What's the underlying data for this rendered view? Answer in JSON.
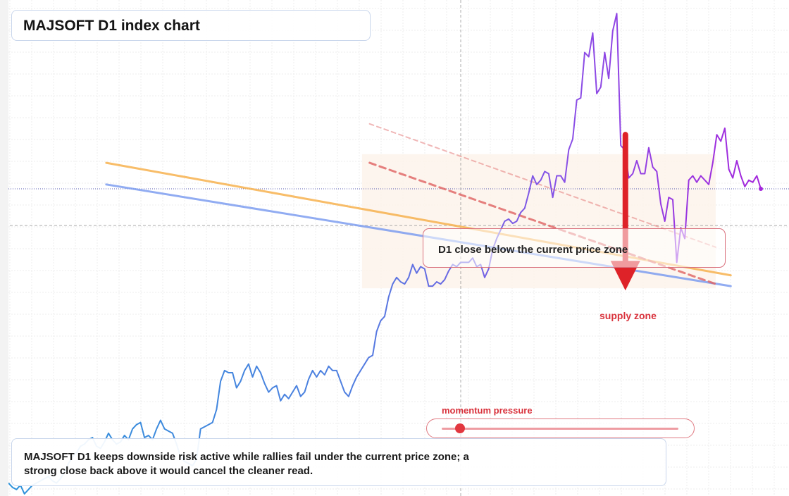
{
  "title": "MAJSOFT D1 index chart",
  "zone_label": "D1 close below the current price zone",
  "momentum_label": "momentum pressure",
  "momentum_level": 0.05,
  "supply_label": "supply zone",
  "note": "MAJSOFT D1 keeps downside risk active while rallies fail under the current price zone; a strong close back above it would cancel the cleaner read.",
  "colors": {
    "price_start": "#2e93db",
    "price_end": "#a326dc",
    "orange_line": "#f7b24f",
    "blue_line": "#7e9ef0",
    "dashed_channel": "#e06262",
    "arrow": "#de2228",
    "zone_fill": "#fdf3ea"
  },
  "chart_data": {
    "type": "line",
    "series": [
      {
        "values": [
          8.4,
          8.2,
          8.1,
          8.3,
          7.9,
          8.1,
          8.3,
          8.4,
          8.5,
          8.6,
          8.7,
          8.5,
          8.4,
          8.6,
          8.9,
          9.3,
          9.6,
          9.8,
          10.1,
          10.2,
          10.4,
          10.5,
          10.1,
          10.0,
          10.3,
          10.7,
          10.4,
          10.2,
          10.3,
          10.6,
          10.4,
          10.9,
          11.1,
          11.2,
          10.5,
          10.6,
          10.4,
          10.9,
          11.3,
          10.9,
          10.8,
          10.7,
          10.2,
          9.6,
          9.4,
          9.3,
          9.2,
          9.5,
          10.9,
          11.0,
          11.1,
          11.2,
          11.8,
          13.1,
          13.6,
          13.5,
          13.5,
          12.8,
          13.1,
          13.6,
          13.9,
          13.3,
          13.8,
          13.5,
          13.0,
          12.6,
          12.8,
          12.9,
          12.2,
          12.5,
          12.3,
          12.6,
          12.9,
          12.4,
          12.6,
          13.2,
          13.6,
          13.3,
          13.6,
          13.4,
          13.8,
          13.6,
          13.6,
          13.1,
          12.6,
          12.4,
          12.9,
          13.3,
          13.6,
          13.9,
          14.2,
          14.3,
          15.4,
          15.9,
          16.1,
          17.0,
          17.6,
          17.9,
          17.7,
          17.6,
          17.9,
          18.5,
          18.1,
          18.4,
          18.3,
          17.5,
          17.5,
          17.7,
          17.6,
          17.8,
          18.2,
          18.5,
          18.4,
          18.6,
          18.6,
          18.6,
          18.8,
          18.4,
          18.5,
          17.9,
          18.3,
          19.2,
          19.7,
          20.1,
          20.5,
          20.6,
          20.4,
          20.5,
          20.9,
          21.1,
          21.8,
          22.6,
          22.2,
          22.4,
          22.8,
          22.7,
          21.6,
          22.6,
          22.6,
          22.3,
          23.8,
          24.3,
          26.1,
          26.2,
          28.3,
          28.1,
          29.2,
          26.4,
          26.7,
          28.3,
          27.1,
          29.3,
          30.1,
          24.0,
          23.8,
          22.5,
          22.7,
          23.3,
          22.7,
          22.7,
          23.9,
          23.0,
          22.8,
          21.3,
          20.5,
          21.6,
          21.5,
          18.6,
          20.2,
          19.7,
          22.4,
          22.6,
          22.3,
          22.6,
          22.4,
          22.2,
          23.2,
          24.5,
          24.2,
          24.8,
          22.9,
          22.5,
          23.3,
          22.6,
          22.1,
          22.4,
          22.3,
          22.6,
          22.0
        ]
      }
    ],
    "xlim": [
      0,
      1
    ],
    "ylim": [
      7.8,
      30.4
    ],
    "current_price": 22.0,
    "price_zone": 20.3,
    "trendlines": [
      {
        "style": "solid",
        "x": [
          0.13,
          0.96
        ],
        "y": [
          23.2,
          18.0
        ]
      },
      {
        "style": "solid",
        "x": [
          0.13,
          0.96
        ],
        "y": [
          22.2,
          17.5
        ]
      },
      {
        "style": "dashed",
        "x": [
          0.48,
          0.94
        ],
        "y": [
          25.0,
          19.3
        ]
      },
      {
        "style": "dashed",
        "x": [
          0.48,
          0.94
        ],
        "y": [
          23.2,
          17.6
        ]
      }
    ],
    "arrow": {
      "x": 0.82,
      "y_from": 24.5,
      "y_to": 17.3
    },
    "zone": {
      "x": [
        0.47,
        0.94
      ],
      "y": [
        17.4,
        23.6
      ]
    },
    "grid": true
  }
}
